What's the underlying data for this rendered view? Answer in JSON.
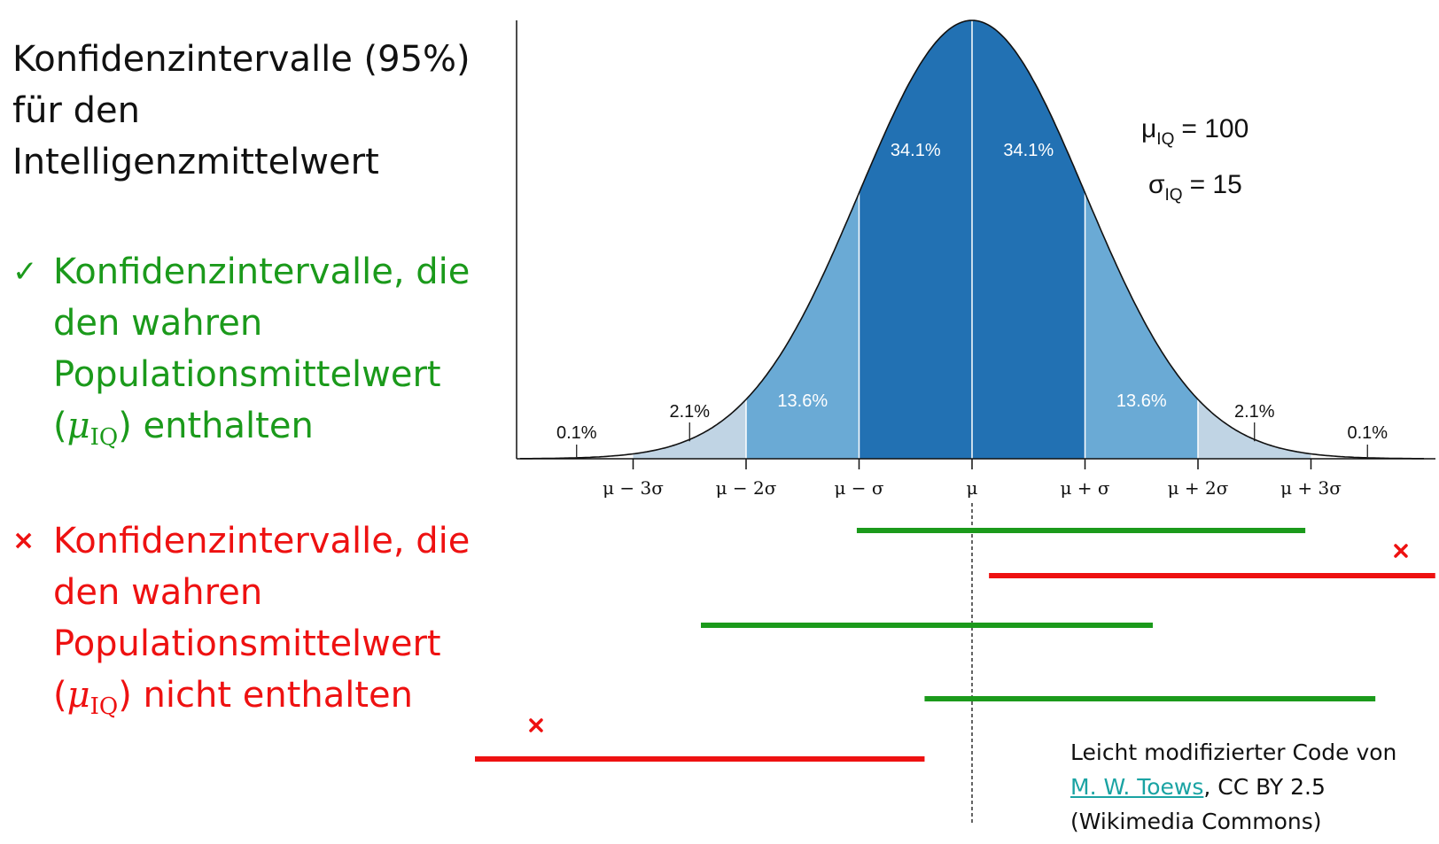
{
  "title_lines": [
    "Konfidenzintervalle (95%)",
    "für den",
    "Intelligenzmittelwert"
  ],
  "legend": {
    "contains": {
      "symbol": "✓",
      "lines": [
        "Konfidenzintervalle, die",
        "den wahren",
        "Populationsmittelwert"
      ],
      "mu": "μ",
      "mu_sub": "IQ",
      "tail": ") enthalten",
      "color": "#1b9a1b"
    },
    "not_contains": {
      "symbol": "×",
      "lines": [
        "Konfidenzintervalle, die",
        "den wahren",
        "Populationsmittelwert"
      ],
      "mu": "μ",
      "mu_sub": "IQ",
      "tail": ") nicht enthalten",
      "color": "#ee1111"
    }
  },
  "params": {
    "mu_label": "μ",
    "mu_sub": "IQ",
    "mu_value": "= 100",
    "sigma_label": "σ",
    "sigma_sub": "IQ",
    "sigma_value": "= 15"
  },
  "chart_data": {
    "type": "area",
    "distribution": "normal",
    "mean": 0,
    "sd": 1,
    "xlim": [
      -4,
      4
    ],
    "ticks": [
      {
        "x": -3,
        "label": "μ − 3σ"
      },
      {
        "x": -2,
        "label": "μ − 2σ"
      },
      {
        "x": -1,
        "label": "μ − σ"
      },
      {
        "x": 0,
        "label": "μ"
      },
      {
        "x": 1,
        "label": "μ + σ"
      },
      {
        "x": 2,
        "label": "μ + 2σ"
      },
      {
        "x": 3,
        "label": "μ + 3σ"
      }
    ],
    "bands": [
      {
        "from": -3,
        "to": -2,
        "percent": "2.1%",
        "color": "#c0d4e4"
      },
      {
        "from": -2,
        "to": -1,
        "percent": "13.6%",
        "color": "#6aaad5"
      },
      {
        "from": -1,
        "to": 0,
        "percent": "34.1%",
        "color": "#2271b3"
      },
      {
        "from": 0,
        "to": 1,
        "percent": "34.1%",
        "color": "#2271b3"
      },
      {
        "from": 1,
        "to": 2,
        "percent": "13.6%",
        "color": "#6aaad5"
      },
      {
        "from": 2,
        "to": 3,
        "percent": "2.1%",
        "color": "#c0d4e4"
      }
    ],
    "tail_labels": [
      {
        "x": -3.5,
        "percent": "0.1%"
      },
      {
        "x": 3.5,
        "percent": "0.1%"
      }
    ],
    "intervals": [
      {
        "from": -1.02,
        "to": 2.95,
        "contains_mu": true
      },
      {
        "from": 0.15,
        "to": 4.1,
        "contains_mu": false
      },
      {
        "from": -2.4,
        "to": 1.6,
        "contains_mu": true
      },
      {
        "from": -0.42,
        "to": 3.57,
        "contains_mu": true
      },
      {
        "from": -4.4,
        "to": -0.42,
        "contains_mu": false
      }
    ],
    "colors": {
      "contains": "#1b9a1b",
      "not_contains": "#ee1111",
      "outline": "#111111"
    }
  },
  "credit": {
    "line1": "Leicht modifizierter Code von",
    "link": "M. W. Toews",
    "after_link": ", CC BY 2.5",
    "line3": "(Wikimedia Commons)"
  }
}
